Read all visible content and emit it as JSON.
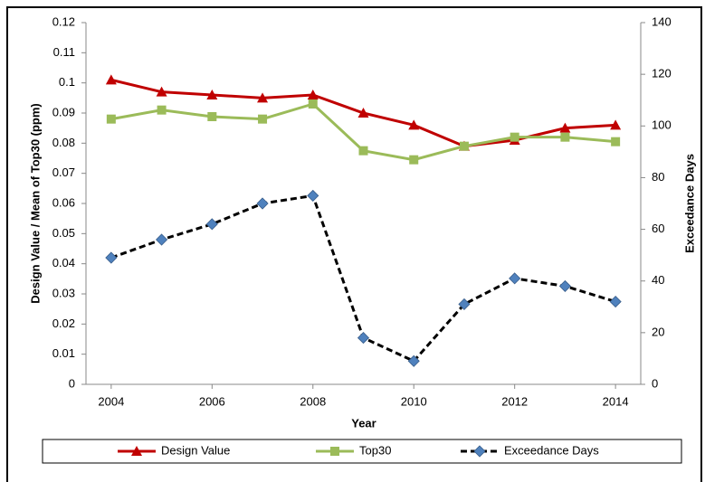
{
  "chart_data": {
    "type": "line",
    "x": [
      2004,
      2005,
      2006,
      2007,
      2008,
      2009,
      2010,
      2011,
      2012,
      2013,
      2014
    ],
    "xlim": [
      2003.5,
      2014.5
    ],
    "xticks": [
      2004,
      2006,
      2008,
      2010,
      2012,
      2014
    ],
    "xlabel": "Year",
    "ylabel": "Design Value / Mean of Top30 (ppm)",
    "y2label": "Exceedance Days",
    "ylim": [
      0,
      0.12
    ],
    "yticks": [
      0,
      0.01,
      0.02,
      0.03,
      0.04,
      0.05,
      0.06,
      0.07,
      0.08,
      0.09,
      0.1,
      0.11,
      0.12
    ],
    "y2lim": [
      0,
      140
    ],
    "y2ticks": [
      0,
      20,
      40,
      60,
      80,
      100,
      120,
      140
    ],
    "grid": false,
    "legend": "bottom",
    "series": [
      {
        "name": "Design Value",
        "color": "#c00000",
        "marker": "triangle",
        "dash": false,
        "values": [
          0.101,
          0.097,
          0.096,
          0.095,
          0.096,
          0.09,
          0.086,
          0.079,
          0.081,
          0.085,
          0.086
        ]
      },
      {
        "name": "Top30",
        "color": "#9bbb59",
        "marker": "square",
        "dash": false,
        "values": [
          0.088,
          0.091,
          0.0888,
          0.088,
          0.093,
          0.0775,
          0.0745,
          0.079,
          0.082,
          0.082,
          0.0805
        ]
      },
      {
        "name": "Exceedance Days",
        "color": "#4f81bd",
        "line_color": "#000000",
        "marker": "diamond",
        "dash": true,
        "axis": "y2",
        "values": [
          49,
          56,
          62,
          70,
          73,
          18,
          9,
          31,
          41,
          38,
          32
        ]
      }
    ]
  }
}
